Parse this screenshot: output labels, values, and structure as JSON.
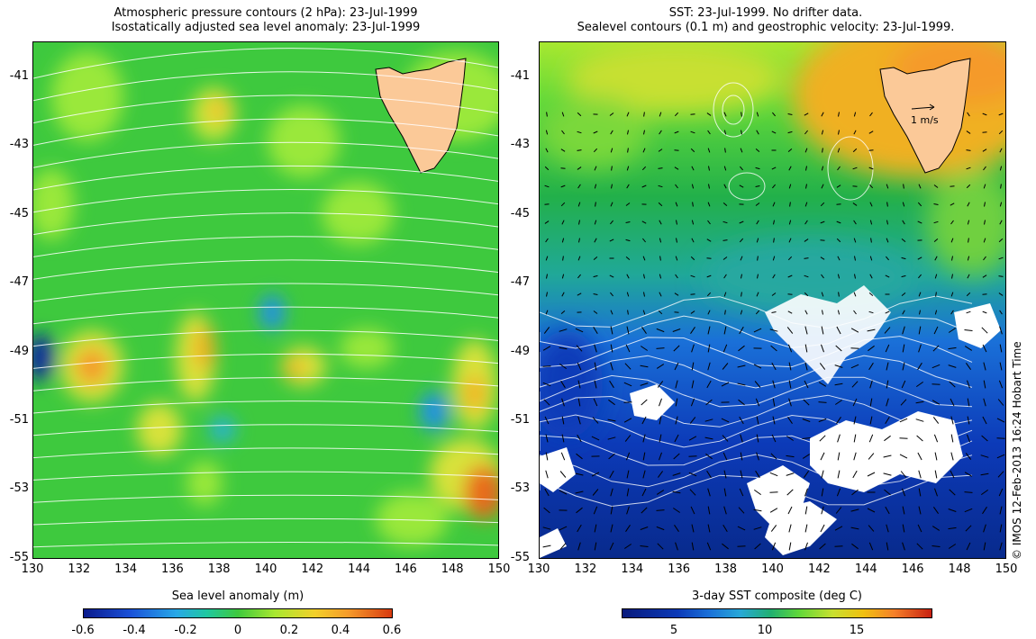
{
  "left_panel": {
    "title_line1": "Atmospheric pressure contours (2 hPa): 23-Jul-1999",
    "title_line2": "Isostatically adjusted sea level anomaly: 23-Jul-1999",
    "colorbar_title": "Sea level anomaly (m)",
    "colorbar_ticks": [
      "-0.6",
      "-0.4",
      "-0.2",
      "0",
      "0.2",
      "0.4",
      "0.6"
    ]
  },
  "right_panel": {
    "title_line1": "SST: 23-Jul-1999. No drifter data.",
    "title_line2": "Sealevel contours (0.1 m) and geostrophic velocity: 23-Jul-1999.",
    "colorbar_title": "3-day SST composite (deg C)",
    "colorbar_ticks": [
      "5",
      "10",
      "15"
    ],
    "velocity_scale_label": "1 m/s"
  },
  "axes": {
    "lat_ticks": [
      "-41",
      "-43",
      "-45",
      "-47",
      "-49",
      "-51",
      "-53",
      "-55"
    ],
    "lon_ticks": [
      "130",
      "132",
      "134",
      "136",
      "138",
      "140",
      "142",
      "144",
      "146",
      "148",
      "150"
    ]
  },
  "credit": "© IMOS 12-Feb-2013 16:24 Hobart Time",
  "colors": {
    "land": "#fbc998",
    "sla_base": "#3ec93e",
    "sst_warm": "#f0c010",
    "sst_cold": "#0a2a9c",
    "contour": "#ffffff"
  }
}
